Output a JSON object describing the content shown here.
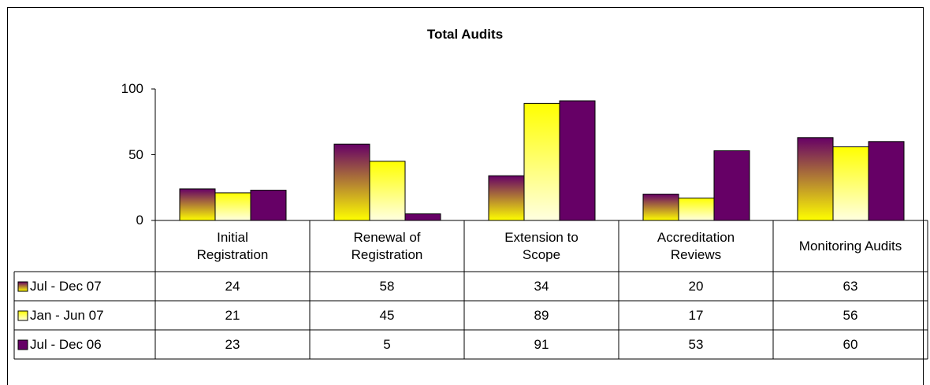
{
  "chart_data": {
    "type": "bar",
    "title": "Total Audits",
    "categories": [
      "Initial\nRegistration",
      "Renewal of\nRegistration",
      "Extension to\nScope",
      "Accreditation\nReviews",
      "Monitoring Audits"
    ],
    "series": [
      {
        "name": "Jul - Dec 07",
        "color": "#660066",
        "gradient": [
          "#660066",
          "#ffff00"
        ],
        "values": [
          24,
          58,
          34,
          20,
          63
        ]
      },
      {
        "name": "Jan - Jun 07",
        "color": "#ffff00",
        "gradient": [
          "#ffff00",
          "#ffffe0"
        ],
        "values": [
          21,
          45,
          89,
          17,
          56
        ]
      },
      {
        "name": "Jul - Dec 06",
        "color": "#660066",
        "values": [
          23,
          5,
          91,
          53,
          60
        ]
      }
    ],
    "ylim": [
      0,
      100
    ],
    "yticks": [
      0,
      50,
      100
    ],
    "data_table": true
  }
}
